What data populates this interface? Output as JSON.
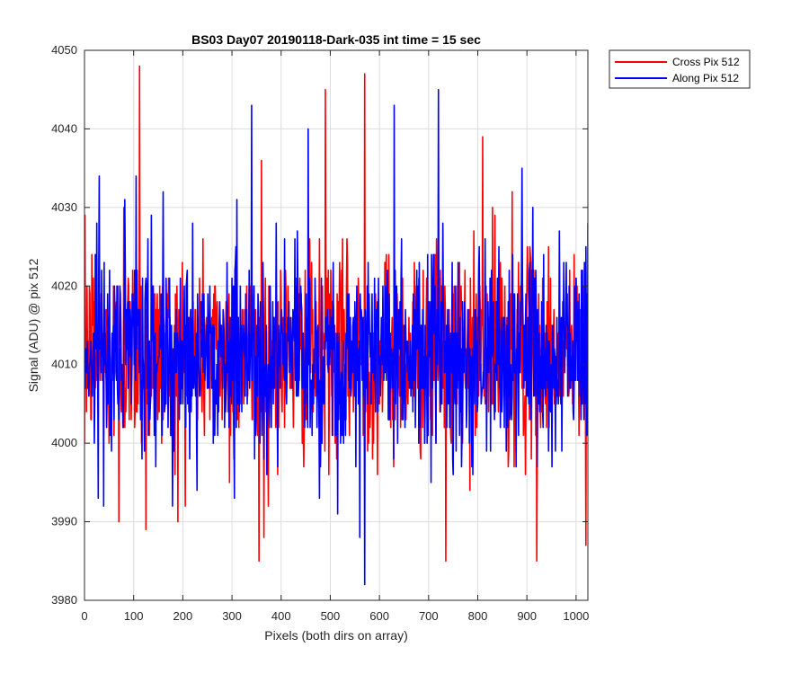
{
  "chart_data": {
    "type": "line",
    "title": "BS03 Day07 20190118-Dark-035 int time = 15 sec",
    "xlabel": "Pixels (both dirs on array)",
    "ylabel": "Signal (ADU) @ pix 512",
    "xlim": [
      0,
      1024
    ],
    "ylim": [
      3980,
      4050
    ],
    "x_ticks": [
      0,
      100,
      200,
      300,
      400,
      500,
      600,
      700,
      800,
      900,
      1000
    ],
    "y_ticks": [
      3980,
      3990,
      4000,
      4010,
      4020,
      4030,
      4040,
      4050
    ],
    "grid": true,
    "legend_position": "outside-top-right",
    "series_style": "dense noise signal, one sample per pixel 0-1024, mean ≈ 4011.5, std ≈ 6 ADU",
    "series": [
      {
        "name": "Cross Pix 512",
        "color": "#ff0000",
        "x": [
          0,
          5,
          15,
          30,
          60,
          70,
          80,
          112,
          125,
          160,
          190,
          295,
          355,
          360,
          365,
          480,
          490,
          570,
          735,
          810,
          830,
          870,
          920,
          1020,
          1024
        ],
        "values": [
          4000,
          4020,
          4024,
          4015,
          4001,
          3990,
          4030,
          4048,
          3989,
          4003,
          3990,
          3995,
          3985,
          4036,
          3988,
          4002,
          4045,
          4047,
          3985,
          4039,
          4030,
          4032,
          3985,
          3987,
          4028
        ]
      },
      {
        "name": "Along Pix 512",
        "color": "#0000ff",
        "x": [
          0,
          25,
          30,
          55,
          105,
          145,
          160,
          180,
          220,
          305,
          310,
          340,
          390,
          455,
          480,
          515,
          560,
          570,
          630,
          705,
          720,
          790,
          890,
          1000,
          1024
        ],
        "values": [
          4007,
          4028,
          4034,
          3999,
          4034,
          3997,
          4032,
          4002,
          4028,
          3993,
          4031,
          4043,
          4028,
          4040,
          3997,
          3991,
          3988,
          3982,
          4043,
          3995,
          4045,
          3996,
          4035,
          4021,
          4003
        ]
      }
    ]
  },
  "legend": {
    "items": [
      {
        "label": "Cross Pix 512",
        "color": "#ff0000"
      },
      {
        "label": "Along Pix 512",
        "color": "#0000ff"
      }
    ]
  }
}
